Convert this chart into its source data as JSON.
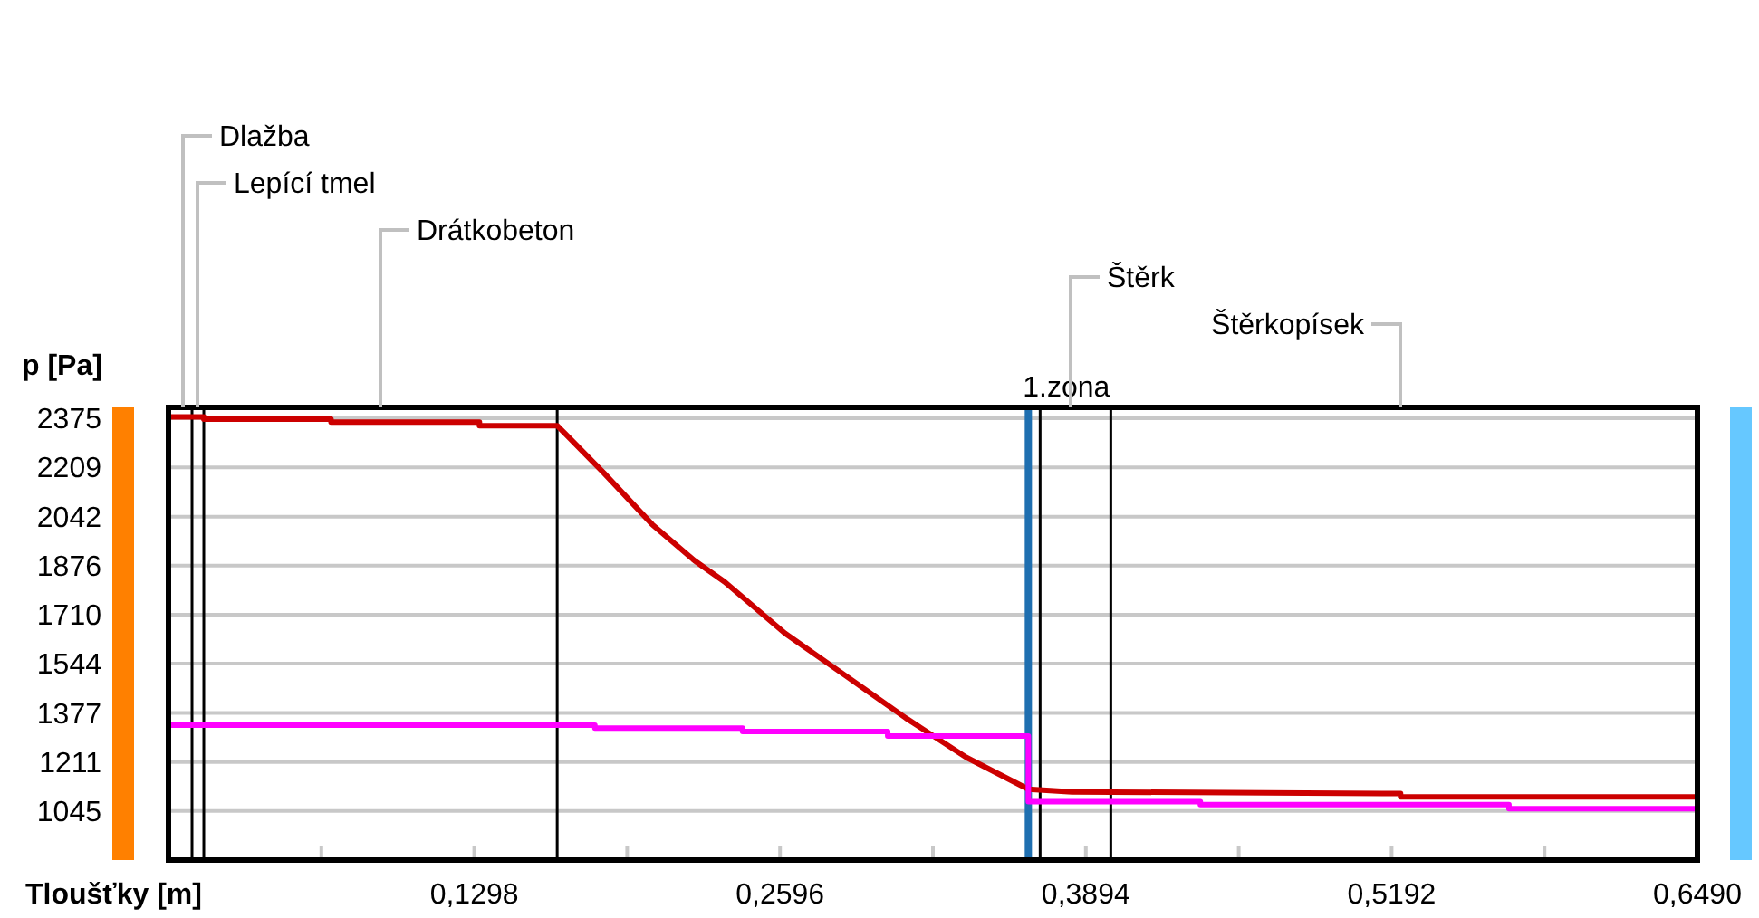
{
  "chart_data": {
    "type": "line",
    "ylabel": "p [Pa]",
    "xlabel": "Tloušťky [m]",
    "xlim": [
      0,
      0.649
    ],
    "ylim": [
      879,
      2412
    ],
    "xticks": [
      {
        "value": 0.0649,
        "label": null
      },
      {
        "value": 0.1298,
        "label": "0,1298"
      },
      {
        "value": 0.1947,
        "label": null
      },
      {
        "value": 0.2596,
        "label": "0,2596"
      },
      {
        "value": 0.3245,
        "label": null
      },
      {
        "value": 0.3894,
        "label": "0,3894"
      },
      {
        "value": 0.4543,
        "label": null
      },
      {
        "value": 0.5192,
        "label": "0,5192"
      },
      {
        "value": 0.5841,
        "label": null
      },
      {
        "value": 0.649,
        "label": "0,6490"
      }
    ],
    "yticks": [
      1045,
      1211,
      1377,
      1544,
      1710,
      1876,
      2042,
      2209,
      2375
    ],
    "grid": "y",
    "marker": "none",
    "line_style": "solid",
    "series": [
      {
        "color": "#cc0000",
        "x": [
          0,
          0.015,
          0.015,
          0.069,
          0.069,
          0.132,
          0.132,
          0.165,
          0.1694,
          0.1848,
          0.2053,
          0.2233,
          0.2361,
          0.2617,
          0.2873,
          0.313,
          0.3386,
          0.365,
          0.365,
          0.3835,
          0.523,
          0.523,
          0.649
        ],
        "values": [
          2380,
          2380,
          2372,
          2372,
          2362,
          2362,
          2350,
          2350,
          2315,
          2190,
          2016,
          1893,
          1821,
          1647,
          1504,
          1360,
          1227,
          1119,
          1119,
          1110,
          1104,
          1093,
          1093
        ]
      },
      {
        "color": "#ff00ff",
        "x": [
          0,
          0.181,
          0.181,
          0.2437,
          0.2437,
          0.3053,
          0.3053,
          0.365,
          0.365,
          0.438,
          0.438,
          0.569,
          0.569,
          0.649
        ],
        "values": [
          1336,
          1336,
          1326,
          1326,
          1314,
          1314,
          1299,
          1299,
          1077,
          1077,
          1067,
          1067,
          1053,
          1053
        ]
      }
    ],
    "ref_lines": [
      {
        "axis": "x",
        "value": 0.01,
        "color": "#000000"
      },
      {
        "axis": "x",
        "value": 0.015,
        "color": "#000000"
      },
      {
        "axis": "x",
        "value": 0.165,
        "color": "#000000"
      },
      {
        "axis": "x",
        "value": 0.37,
        "color": "#000000"
      },
      {
        "axis": "x",
        "value": 0.4,
        "color": "#000000"
      },
      {
        "axis": "x",
        "value": 0.365,
        "label": "1.zona",
        "color": "#1f6fb0"
      }
    ],
    "annotations": [
      "Dlažba",
      "Lepící tmel",
      "Drátkobeton",
      "Štěrk",
      "Štěrkopísek"
    ]
  }
}
